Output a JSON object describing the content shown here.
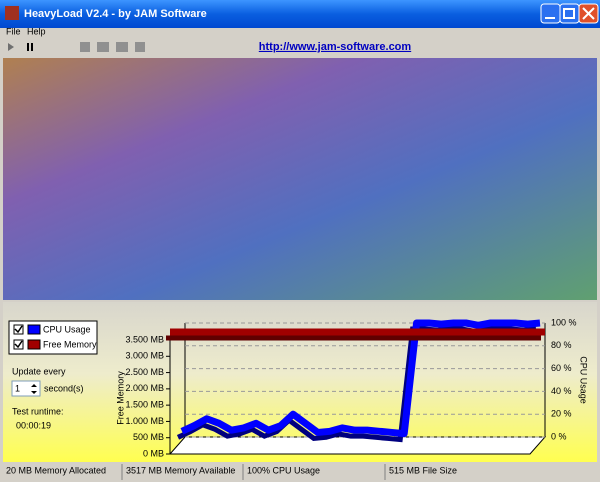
{
  "window": {
    "title": "HeavyLoad V2.4 - by JAM Software",
    "menu": [
      "File",
      "Help"
    ],
    "url": "http://www.jam-software.com"
  },
  "controls": {
    "update_label": "Update every",
    "interval": "1",
    "unit": "second(s)",
    "runtime_label": "Test runtime:",
    "runtime": "00:00:19"
  },
  "chart_data": {
    "type": "line",
    "y_label": "Free Memory",
    "y2_label": "CPU Usage",
    "ylim": [
      0,
      3500
    ],
    "yticks": [
      {
        "value": 0,
        "label": "0 MB"
      },
      {
        "value": 500,
        "label": "500 MB"
      },
      {
        "value": 1000,
        "label": "1.000 MB"
      },
      {
        "value": 1500,
        "label": "1.500 MB"
      },
      {
        "value": 2000,
        "label": "2.000 MB"
      },
      {
        "value": 2500,
        "label": "2.500 MB"
      },
      {
        "value": 3000,
        "label": "3.000 MB"
      },
      {
        "value": 3500,
        "label": "3.500 MB"
      }
    ],
    "y2lim": [
      0,
      100
    ],
    "y2ticks": [
      {
        "value": 0,
        "label": "0 %"
      },
      {
        "value": 20,
        "label": "20 %"
      },
      {
        "value": 40,
        "label": "40 %"
      },
      {
        "value": 60,
        "label": "60 %"
      },
      {
        "value": 80,
        "label": "80 %"
      },
      {
        "value": 100,
        "label": "100 %"
      }
    ],
    "grid": true,
    "series": [
      {
        "name": "CPU Usage",
        "color": "#0000ff",
        "axis": "y2",
        "values": [
          5,
          10,
          16,
          12,
          6,
          8,
          12,
          6,
          10,
          20,
          12,
          4,
          5,
          8,
          6,
          6,
          5,
          4,
          3,
          100,
          100,
          99,
          100,
          100,
          98,
          100,
          100,
          100,
          99,
          100
        ]
      },
      {
        "name": "Free Memory",
        "color": "#a00000",
        "values": [
          3500,
          3500,
          3500,
          3500,
          3500,
          3500,
          3500,
          3500,
          3500,
          3500,
          3500,
          3500,
          3500,
          3500,
          3500,
          3500,
          3500,
          3500,
          3500,
          3500,
          3500,
          3500,
          3500,
          3500,
          3500,
          3500,
          3500,
          3500,
          3500,
          3500
        ]
      }
    ]
  },
  "status": [
    "20 MB Memory Allocated",
    "3517 MB Memory Available",
    "100% CPU Usage",
    "515 MB File Size"
  ]
}
